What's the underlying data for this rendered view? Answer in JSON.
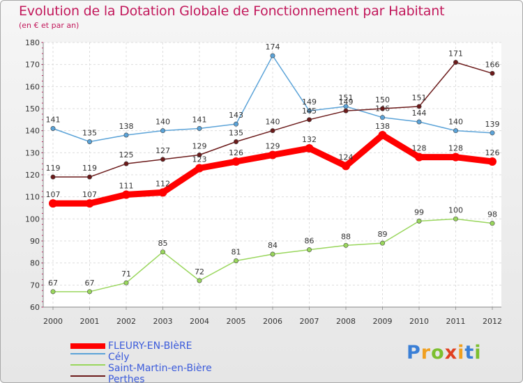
{
  "header": {
    "title": "Evolution de la Dotation Globale de Fonctionnement par Habitant",
    "subtitle": "(en € et par an)"
  },
  "chart_data": {
    "type": "line",
    "x": [
      "2000",
      "2001",
      "2002",
      "2003",
      "2004",
      "2005",
      "2006",
      "2007",
      "2008",
      "2009",
      "2010",
      "2011",
      "2012"
    ],
    "ylim": [
      60,
      180
    ],
    "yticks": [
      60,
      70,
      80,
      90,
      100,
      110,
      120,
      130,
      140,
      150,
      160,
      170,
      180
    ],
    "grid": true,
    "legend_position": "bottom-left",
    "series": [
      {
        "name": "FLEURY-EN-BIèRE",
        "color": "#ff0000",
        "values": [
          107,
          107,
          111,
          112,
          123,
          126,
          129,
          132,
          124,
          138,
          128,
          128,
          126
        ]
      },
      {
        "name": "Cély",
        "color": "#5ba3d8",
        "values": [
          141,
          135,
          138,
          140,
          141,
          143,
          174,
          149,
          151,
          146,
          144,
          140,
          139
        ]
      },
      {
        "name": "Saint-Martin-en-Bière",
        "color": "#99d65c",
        "values": [
          67,
          67,
          71,
          85,
          72,
          81,
          84,
          86,
          88,
          89,
          99,
          100,
          98
        ]
      },
      {
        "name": "Perthes",
        "color": "#6b1a1a",
        "values": [
          119,
          119,
          125,
          127,
          129,
          135,
          140,
          145,
          149,
          150,
          151,
          171,
          166
        ]
      }
    ]
  },
  "logo": {
    "letters": [
      "P",
      "r",
      "o",
      "x",
      "i",
      "t",
      "i"
    ],
    "colors": [
      "#3a7fd6",
      "#f0a020",
      "#7cbf2f",
      "#e04020",
      "#f0a020",
      "#3a7fd6",
      "#7cbf2f"
    ]
  }
}
